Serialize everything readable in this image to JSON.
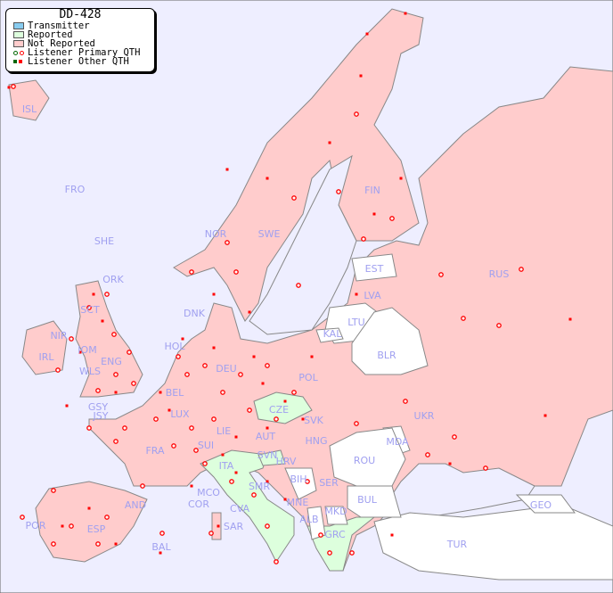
{
  "title": "DD-428",
  "legend": {
    "items": [
      {
        "label": "Transmitter",
        "color": "#88ccf0"
      },
      {
        "label": "Reported",
        "color": "#ddffdd"
      },
      {
        "label": "Not Reported",
        "color": "#ffcccc"
      },
      {
        "label": "Listener Primary QTH",
        "colors": [
          "#006600",
          "#ff0000"
        ]
      },
      {
        "label": "Listener Other QTH",
        "colors": [
          "#006600",
          "#ff0000"
        ]
      }
    ]
  },
  "colors": {
    "sea": "#eeeeff",
    "not_reported": "#ffcccc",
    "reported": "#ddffdd",
    "no_data": "#ffffff",
    "label": "#a0a0f0",
    "listener": "#ff0000"
  },
  "countries": {
    "ISL": "ISL",
    "FRO": "FRO",
    "SHE": "SHE",
    "ORK": "ORK",
    "NOR": "NOR",
    "SWE": "SWE",
    "FIN": "FIN",
    "EST": "EST",
    "LVA": "LVA",
    "LTU": "LTU",
    "RUS": "RUS",
    "DNK": "DNK",
    "KAL": "KAL",
    "BLR": "BLR",
    "SCT": "SCT",
    "NIR": "NIR",
    "IOM": "IOM",
    "IRL": "IRL",
    "ENG": "ENG",
    "WLS": "WLS",
    "HOL": "HOL",
    "BEL": "BEL",
    "LUX": "LUX",
    "GSY": "GSY",
    "JSY": "JSY",
    "DEU": "DEU",
    "POL": "POL",
    "CZE": "CZE",
    "SVK": "SVK",
    "UKR": "UKR",
    "MDA": "MDA",
    "FRA": "FRA",
    "SUI": "SUI",
    "LIE": "LIE",
    "AUT": "AUT",
    "HNG": "HNG",
    "SVN": "SVN",
    "HRV": "HRV",
    "ROU": "ROU",
    "ITA": "ITA",
    "BIH": "BIH",
    "SER": "SER",
    "SMR": "SMR",
    "MCO": "MCO",
    "COR": "COR",
    "CVA": "CVA",
    "MNE": "MNE",
    "BUL": "BUL",
    "AND": "AND",
    "ALB": "ALB",
    "MKD": "MKD",
    "GEO": "GEO",
    "POR": "POR",
    "ESP": "ESP",
    "SAR": "SAR",
    "GRC": "GRC",
    "TUR": "TUR",
    "BAL": "BAL"
  }
}
